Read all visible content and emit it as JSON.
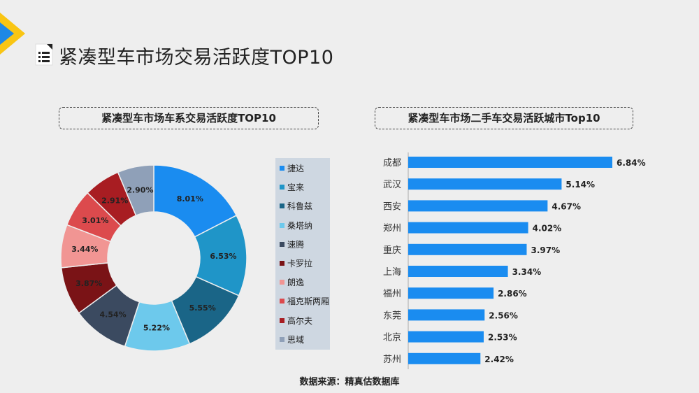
{
  "page": {
    "title": "紧凑型车市场交易活跃度TOP10",
    "source": "数据来源：精真估数据库"
  },
  "chart_data": [
    {
      "type": "pie",
      "variant": "donut",
      "title": "紧凑型车市场车系交易活跃度TOP10",
      "legend_position": "right",
      "categories": [
        "捷达",
        "宝来",
        "科鲁兹",
        "桑塔纳",
        "速腾",
        "卡罗拉",
        "朗逸",
        "福克斯两厢",
        "高尔夫",
        "思域"
      ],
      "values": [
        8.01,
        6.53,
        5.55,
        5.22,
        4.54,
        3.87,
        3.44,
        3.01,
        2.91,
        2.9
      ],
      "labels": [
        "8.01%",
        "6.53%",
        "5.55%",
        "5.22%",
        "4.54%",
        "3.87%",
        "3.44%",
        "3.01%",
        "2.91%",
        "2.90%"
      ],
      "colors": [
        "#1a8cf0",
        "#1f95c8",
        "#1a6587",
        "#6dc9ec",
        "#3b4a60",
        "#7a1316",
        "#f19593",
        "#dc4a4d",
        "#a81d22",
        "#8fa0b8"
      ]
    },
    {
      "type": "bar",
      "orientation": "horizontal",
      "title": "紧凑型车市场二手车交易活跃城市Top10",
      "categories": [
        "成都",
        "武汉",
        "西安",
        "郑州",
        "重庆",
        "上海",
        "福州",
        "东莞",
        "北京",
        "苏州"
      ],
      "values": [
        6.84,
        5.14,
        4.67,
        4.02,
        3.97,
        3.34,
        2.86,
        2.56,
        2.53,
        2.42
      ],
      "labels": [
        "6.84%",
        "5.14%",
        "4.67%",
        "4.02%",
        "3.97%",
        "3.34%",
        "2.86%",
        "2.56%",
        "2.53%",
        "2.42%"
      ],
      "xlim": [
        0,
        7
      ],
      "bar_color": "#1a8cf0"
    }
  ],
  "colors": {
    "brand_blue": "#1e88e5",
    "brand_yellow": "#f9c513"
  }
}
